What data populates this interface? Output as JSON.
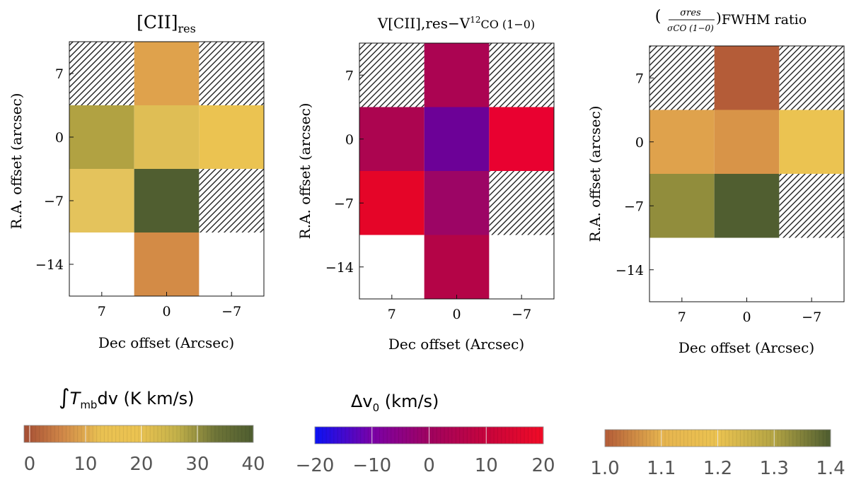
{
  "chart_data": [
    {
      "type": "heatmap",
      "title": "[CII]",
      "title_sub": "res",
      "xlabel": "Dec offset (Arcsec)",
      "ylabel": "R.A. offset (arcsec)",
      "x_ticks": [
        7,
        0,
        -7
      ],
      "x_tick_labels": [
        "7",
        "0",
        "−7"
      ],
      "y_ticks": [
        7,
        0,
        -7,
        -14
      ],
      "y_tick_labels": [
        "7",
        "0",
        "−7",
        "−14"
      ],
      "xlim": [
        10.5,
        -10.5
      ],
      "ylim": [
        -17.5,
        10.5
      ],
      "cells": [
        {
          "dec": 0,
          "ra": 7,
          "value": 15,
          "color": "#dfa24c"
        },
        {
          "dec": 7,
          "ra": 0,
          "value": 33,
          "color": "#b1a242"
        },
        {
          "dec": 0,
          "ra": 0,
          "value": 27,
          "color": "#dfbe55"
        },
        {
          "dec": -7,
          "ra": 0,
          "value": 22,
          "color": "#ebc351"
        },
        {
          "dec": 7,
          "ra": -7,
          "value": 26,
          "color": "#e4c35c"
        },
        {
          "dec": 0,
          "ra": -7,
          "value": 40,
          "color": "#505e30"
        },
        {
          "dec": 0,
          "ra": -14,
          "value": 10,
          "color": "#d38b46"
        }
      ],
      "hatched_cells": [
        {
          "dec": 7,
          "ra": 7
        },
        {
          "dec": -7,
          "ra": 7
        },
        {
          "dec": -7,
          "ra": -7
        }
      ]
    },
    {
      "type": "heatmap",
      "title": "V[CII],res−V",
      "title_sup": "12",
      "title_tail": "CO (1−0)",
      "xlabel": "Dec offset (Arcsec)",
      "ylabel": "R.A. offset (arcsec)",
      "x_ticks": [
        7,
        0,
        -7
      ],
      "x_tick_labels": [
        "7",
        "0",
        "−7"
      ],
      "y_ticks": [
        7,
        0,
        -7,
        -14
      ],
      "y_tick_labels": [
        "7",
        "0",
        "−7",
        "−14"
      ],
      "xlim": [
        10.5,
        -10.5
      ],
      "ylim": [
        -17.5,
        10.5
      ],
      "cells": [
        {
          "dec": 0,
          "ra": 7,
          "value": 8,
          "color": "#ab0452"
        },
        {
          "dec": 7,
          "ra": 0,
          "value": 8,
          "color": "#ac0550"
        },
        {
          "dec": 0,
          "ra": 0,
          "value": -6,
          "color": "#6c0197"
        },
        {
          "dec": -7,
          "ra": 0,
          "value": 17,
          "color": "#e90130"
        },
        {
          "dec": 7,
          "ra": -7,
          "value": 17,
          "color": "#e50528"
        },
        {
          "dec": 0,
          "ra": -7,
          "value": 4,
          "color": "#9c0565"
        },
        {
          "dec": 0,
          "ra": -14,
          "value": 9,
          "color": "#b40447"
        }
      ],
      "hatched_cells": [
        {
          "dec": 7,
          "ra": 7
        },
        {
          "dec": -7,
          "ra": 7
        },
        {
          "dec": -7,
          "ra": -7
        }
      ]
    },
    {
      "type": "heatmap",
      "title_tail": "FWHM ratio",
      "frac_num": "σres",
      "frac_den": "σCO (1−0)",
      "xlabel": "Dec offset (Arcsec)",
      "ylabel": "R.A. offset (arcsec)",
      "x_ticks": [
        7,
        0,
        -7
      ],
      "x_tick_labels": [
        "7",
        "0",
        "−7"
      ],
      "y_ticks": [
        7,
        0,
        -7,
        -14
      ],
      "y_tick_labels": [
        "7",
        "0",
        "−7",
        "−14"
      ],
      "xlim": [
        10.5,
        -10.5
      ],
      "ylim": [
        -17.5,
        10.5
      ],
      "cells": [
        {
          "dec": 0,
          "ra": 7,
          "value": 1.02,
          "color": "#b45c38"
        },
        {
          "dec": 7,
          "ra": 0,
          "value": 1.1,
          "color": "#dfa24c"
        },
        {
          "dec": 0,
          "ra": 0,
          "value": 1.08,
          "color": "#d89448"
        },
        {
          "dec": -7,
          "ra": 0,
          "value": 1.22,
          "color": "#ebc351"
        },
        {
          "dec": 7,
          "ra": -7,
          "value": 1.33,
          "color": "#918d3c"
        },
        {
          "dec": 0,
          "ra": -7,
          "value": 1.4,
          "color": "#505e30"
        }
      ],
      "hatched_cells": [
        {
          "dec": 7,
          "ra": 7
        },
        {
          "dec": -7,
          "ra": 7
        },
        {
          "dec": -7,
          "ra": -7
        }
      ]
    }
  ],
  "colorbars": [
    {
      "label_pre": "∫",
      "label_var": "T",
      "label_sub": "mb",
      "label_post": "dv (K km/s)",
      "range": [
        -1,
        40
      ],
      "ticks": [
        0,
        10,
        20,
        30,
        40
      ],
      "tick_labels": [
        "0",
        "10",
        "20",
        "30",
        "40"
      ],
      "stops": [
        "#a64e34",
        "#d08748",
        "#e9c152",
        "#ebc351",
        "#c3b14a",
        "#6f7538",
        "#4e5d30"
      ]
    },
    {
      "label_pre": "Δv",
      "label_sub": "0",
      "label_post": " (km/s)",
      "range": [
        -20,
        20
      ],
      "ticks": [
        -20,
        -10,
        0,
        10,
        20
      ],
      "tick_labels": [
        "−20",
        "−10",
        "0",
        "10",
        "20"
      ],
      "stops": [
        "#0a12f5",
        "#7a01a8",
        "#a00360",
        "#c6043c",
        "#f10b26"
      ]
    },
    {
      "range": [
        1.0,
        1.4
      ],
      "ticks": [
        1.0,
        1.1,
        1.2,
        1.3,
        1.4
      ],
      "tick_labels": [
        "1.0",
        "1.1",
        "1.2",
        "1.3",
        "1.4"
      ],
      "stops": [
        "#b45c38",
        "#e6b44f",
        "#ebc351",
        "#b3a444",
        "#4e5d30"
      ]
    }
  ]
}
